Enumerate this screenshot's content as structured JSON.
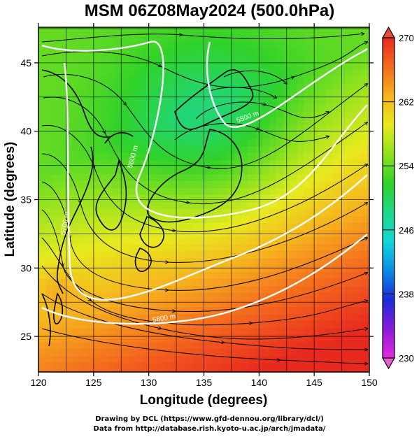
{
  "title": "MSM 06Z08May2024 (500.0hPa)",
  "axes": {
    "xlabel": "Longitude (degrees)",
    "ylabel": "Latitude  (degrees)",
    "xlim": [
      120,
      150
    ],
    "ylim": [
      22.4,
      47.6
    ],
    "xticks": [
      "120",
      "125",
      "130",
      "135",
      "140",
      "145",
      "150"
    ],
    "yticks": [
      "25",
      "30",
      "35",
      "40",
      "45"
    ]
  },
  "colorbar": {
    "range": [
      230,
      270
    ],
    "labels": [
      "230",
      "238",
      "246",
      "254",
      "262",
      "270"
    ],
    "colors": [
      "#e628e0",
      "#8a1ad8",
      "#1a2ad8",
      "#0a8ce6",
      "#12d6d8",
      "#1ed88a",
      "#30d22a",
      "#8ee21e",
      "#e8ea1e",
      "#f6b41e",
      "#f46a1e",
      "#e82a1e"
    ]
  },
  "contours": [
    {
      "label": "5500 m",
      "color": "#ffffff"
    },
    {
      "label": "5600 m",
      "color": "#ffffff"
    },
    {
      "label": "5700 m",
      "color": "#ffffff"
    },
    {
      "label": "5800 m",
      "color": "#ffffff"
    }
  ],
  "credits": {
    "line1": "Drawing by DCL (https://www.gfd-dennou.org/library/dcl/)",
    "line2": "Data from http://database.rish.kyoto-u.ac.jp/arch/jmadata/"
  }
}
